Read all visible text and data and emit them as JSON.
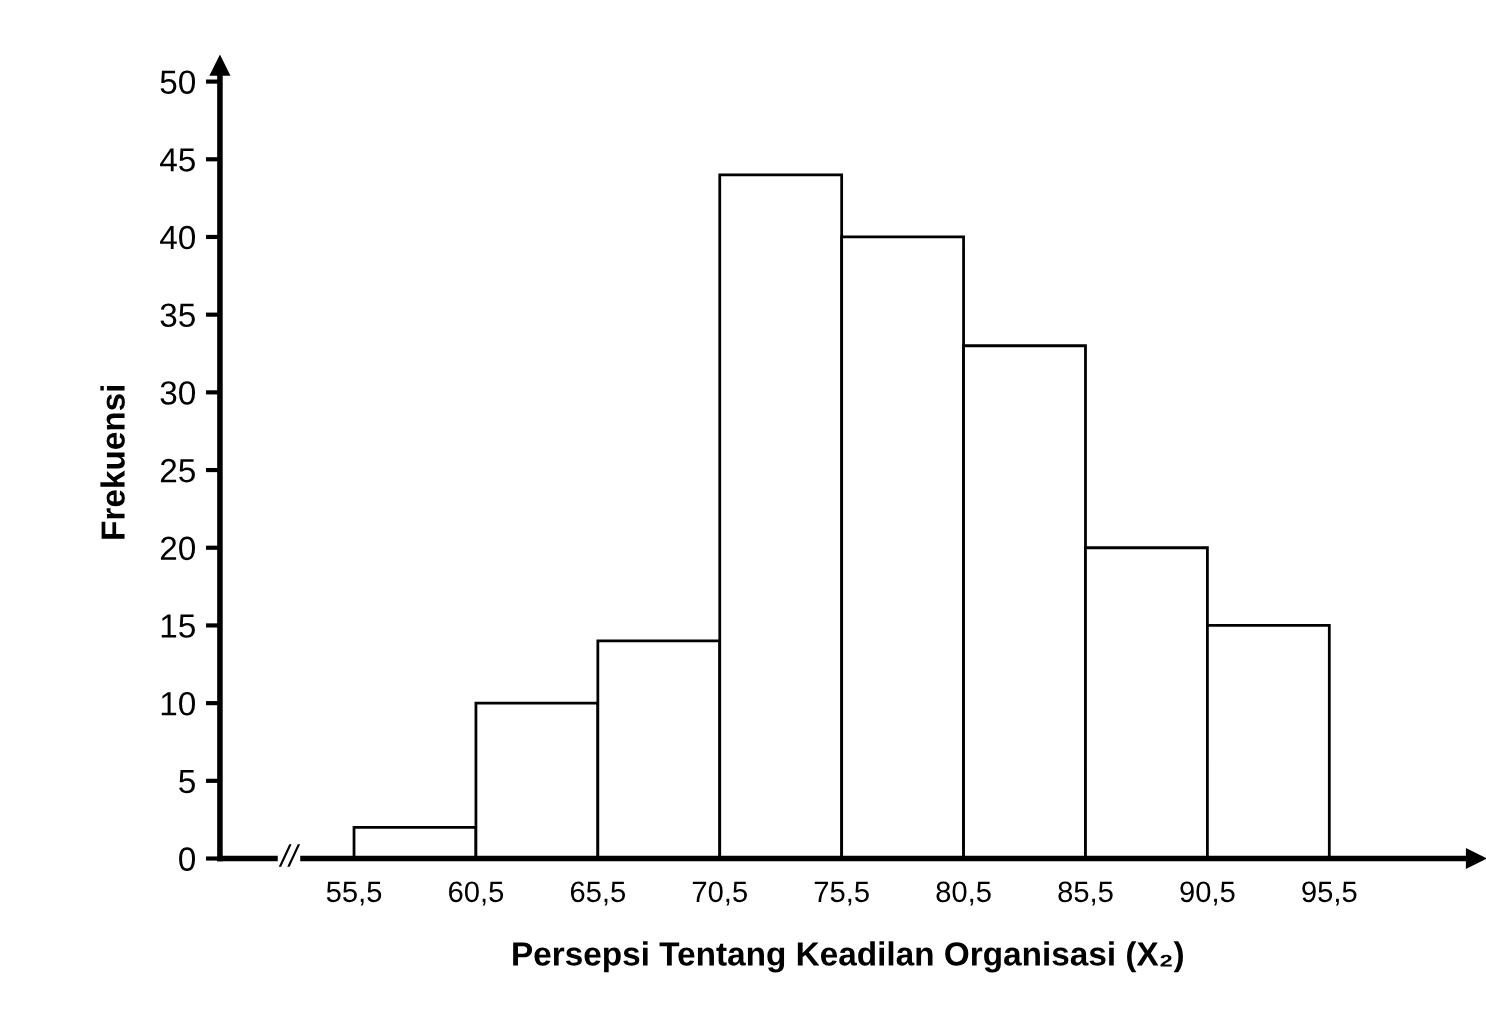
{
  "chart_data": {
    "type": "histogram",
    "xlabel": "Persepsi Tentang Keadilan Organisasi (X₂)",
    "ylabel": "Frekuensi",
    "bins": [
      55.5,
      60.5,
      65.5,
      70.5,
      75.5,
      80.5,
      85.5,
      90.5,
      95.5
    ],
    "values": [
      2,
      10,
      14,
      44,
      40,
      33,
      20,
      15
    ],
    "color": "#ffffff",
    "xlim": [
      50,
      101.5
    ],
    "ylim": [
      0,
      51
    ],
    "xticks": [
      {
        "value": 55.5,
        "label": "55,5"
      },
      {
        "value": 60.5,
        "label": "60,5"
      },
      {
        "value": 65.5,
        "label": "65,5"
      },
      {
        "value": 70.5,
        "label": "70,5"
      },
      {
        "value": 75.5,
        "label": "75,5"
      },
      {
        "value": 80.5,
        "label": "80,5"
      },
      {
        "value": 85.5,
        "label": "85,5"
      },
      {
        "value": 90.5,
        "label": "90,5"
      },
      {
        "value": 95.5,
        "label": "95,5"
      }
    ],
    "yticks": [
      0,
      5,
      10,
      15,
      20,
      25,
      30,
      35,
      40,
      45,
      50
    ],
    "annotations": [
      "//"
    ],
    "grid": false,
    "legend": false
  }
}
